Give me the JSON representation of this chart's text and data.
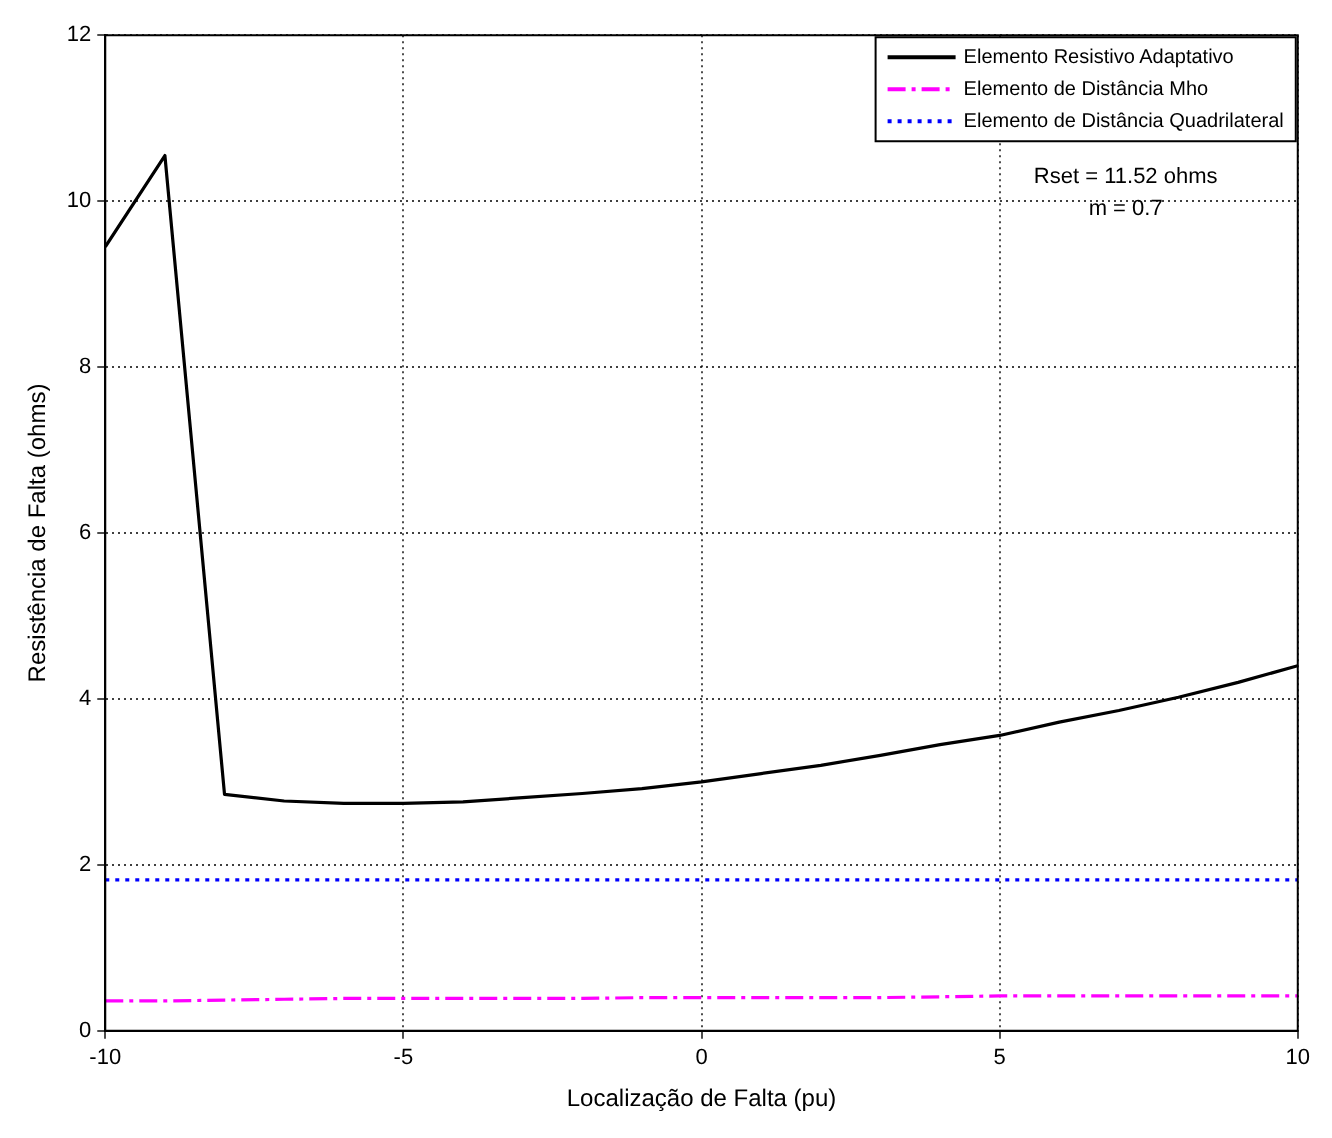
{
  "chart_data": {
    "type": "line",
    "xlabel": "Localização de Falta (pu)",
    "ylabel": "Resistência de Falta (ohms)",
    "x": [
      -10,
      -9,
      -8,
      -7,
      -6,
      -5,
      -4,
      -3,
      -2,
      -1,
      0,
      1,
      2,
      3,
      4,
      5,
      6,
      7,
      8,
      9,
      10
    ],
    "series": [
      {
        "name": "Elemento Resistivo Adaptativo",
        "color": "#000000",
        "line_style": "solid",
        "values": [
          9.45,
          10.55,
          2.85,
          2.77,
          2.74,
          2.74,
          2.76,
          2.81,
          2.86,
          2.92,
          3.0,
          3.1,
          3.2,
          3.32,
          3.45,
          3.56,
          3.72,
          3.86,
          4.02,
          4.2,
          4.4
        ]
      },
      {
        "name": "Elemento de Distância Mho",
        "color": "#ff00ff",
        "line_style": "dashed",
        "values": [
          0.36,
          0.36,
          0.37,
          0.38,
          0.39,
          0.39,
          0.39,
          0.39,
          0.39,
          0.4,
          0.4,
          0.4,
          0.4,
          0.4,
          0.41,
          0.42,
          0.42,
          0.42,
          0.42,
          0.42,
          0.42
        ]
      },
      {
        "name": "Elemento de Distância Quadrilateral",
        "color": "#0000ff",
        "line_style": "dotted",
        "values": [
          1.82,
          1.82,
          1.82,
          1.82,
          1.82,
          1.82,
          1.82,
          1.82,
          1.82,
          1.82,
          1.82,
          1.82,
          1.82,
          1.82,
          1.82,
          1.82,
          1.82,
          1.82,
          1.82,
          1.82,
          1.82
        ]
      }
    ],
    "xlim": [
      -10,
      10
    ],
    "xticks": [
      -10,
      -5,
      0,
      5,
      10
    ],
    "ylim": [
      0,
      12
    ],
    "yticks": [
      0,
      2,
      4,
      6,
      8,
      10,
      12
    ],
    "grid": true,
    "legend": "top right",
    "marker": "none",
    "annotations": [
      "Rset = 11.52 ohms",
      "m = 0.7"
    ]
  }
}
